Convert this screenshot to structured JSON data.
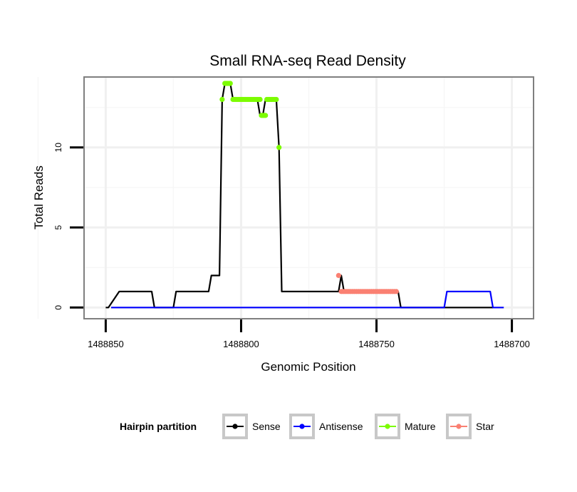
{
  "chart_data": {
    "type": "line",
    "title": "Small RNA-seq Read Density",
    "xlabel": "Genomic Position",
    "ylabel": "Total Reads",
    "xlim": [
      1488858,
      1488692
    ],
    "ylim": [
      -0.7,
      14.4
    ],
    "x_ticks": [
      1488850,
      1488800,
      1488750,
      1488700
    ],
    "x_tick_labels": [
      "1488850",
      "1488800",
      "1488750",
      "1488700"
    ],
    "y_ticks": [
      0,
      5,
      10
    ],
    "y_tick_labels": [
      "0",
      "5",
      "10"
    ],
    "grid": true,
    "legend": {
      "title": "Hairpin partition",
      "position": "bottom",
      "entries": [
        {
          "name": "Sense",
          "color": "#000000"
        },
        {
          "name": "Antisense",
          "color": "#0000ff"
        },
        {
          "name": "Mature",
          "color": "#7cfc00"
        },
        {
          "name": "Star",
          "color": "#fa8072"
        }
      ]
    },
    "series": [
      {
        "name": "Sense",
        "color": "#000000",
        "style": "line",
        "x": [
          1488850,
          1488849,
          1488845,
          1488833,
          1488832,
          1488825,
          1488824,
          1488812,
          1488811,
          1488808,
          1488807,
          1488806,
          1488804,
          1488803,
          1488801,
          1488799,
          1488794,
          1488793,
          1488792,
          1488791,
          1488790,
          1488787,
          1488786,
          1488785,
          1488764,
          1488763,
          1488762,
          1488742,
          1488741,
          1488725,
          1488724,
          1488707
        ],
        "y": [
          0,
          0,
          1,
          1,
          0,
          0,
          1,
          1,
          2,
          2,
          13,
          14,
          14,
          13,
          13,
          13,
          13,
          12,
          12,
          13,
          13,
          13,
          10,
          1,
          1,
          2,
          1,
          1,
          0,
          0,
          0,
          0
        ]
      },
      {
        "name": "Antisense",
        "color": "#0000ff",
        "style": "line",
        "x": [
          1488848,
          1488726,
          1488725,
          1488724,
          1488708,
          1488707,
          1488705,
          1488703
        ],
        "y": [
          0,
          0,
          0,
          1,
          1,
          0,
          0,
          0
        ]
      },
      {
        "name": "Mature",
        "color": "#7cfc00",
        "style": "points",
        "x": [
          1488807,
          1488806,
          1488805.5,
          1488805,
          1488804.5,
          1488804,
          1488803,
          1488802.5,
          1488802,
          1488801.5,
          1488801,
          1488800.5,
          1488800,
          1488799.5,
          1488799,
          1488798.5,
          1488798,
          1488797.5,
          1488797,
          1488796.5,
          1488796,
          1488795.5,
          1488795,
          1488794.5,
          1488794,
          1488793.5,
          1488793,
          1488792.5,
          1488792,
          1488791.5,
          1488791,
          1488790.5,
          1488790,
          1488789.5,
          1488789,
          1488788.5,
          1488788,
          1488787.5,
          1488787,
          1488786
        ],
        "y": [
          13,
          14,
          14,
          14,
          14,
          14,
          13,
          13,
          13,
          13,
          13,
          13,
          13,
          13,
          13,
          13,
          13,
          13,
          13,
          13,
          13,
          13,
          13,
          13,
          13,
          13,
          13,
          12,
          12,
          12,
          12,
          13,
          13,
          13,
          13,
          13,
          13,
          13,
          13,
          10
        ]
      },
      {
        "name": "Star",
        "color": "#fa8072",
        "style": "points",
        "x": [
          1488764,
          1488763,
          1488762.3,
          1488761.6,
          1488760.9,
          1488760.2,
          1488759.5,
          1488758.8,
          1488758.1,
          1488757.4,
          1488756.7,
          1488756,
          1488755.3,
          1488754.6,
          1488753.9,
          1488753.2,
          1488752.5,
          1488751.8,
          1488751.1,
          1488750.4,
          1488749.7,
          1488749,
          1488748.3,
          1488747.6,
          1488746.9,
          1488746.2,
          1488745.5,
          1488744.8,
          1488744.1,
          1488743.4,
          1488742.7
        ],
        "y": [
          2,
          1,
          1,
          1,
          1,
          1,
          1,
          1,
          1,
          1,
          1,
          1,
          1,
          1,
          1,
          1,
          1,
          1,
          1,
          1,
          1,
          1,
          1,
          1,
          1,
          1,
          1,
          1,
          1,
          1,
          1
        ]
      }
    ]
  }
}
